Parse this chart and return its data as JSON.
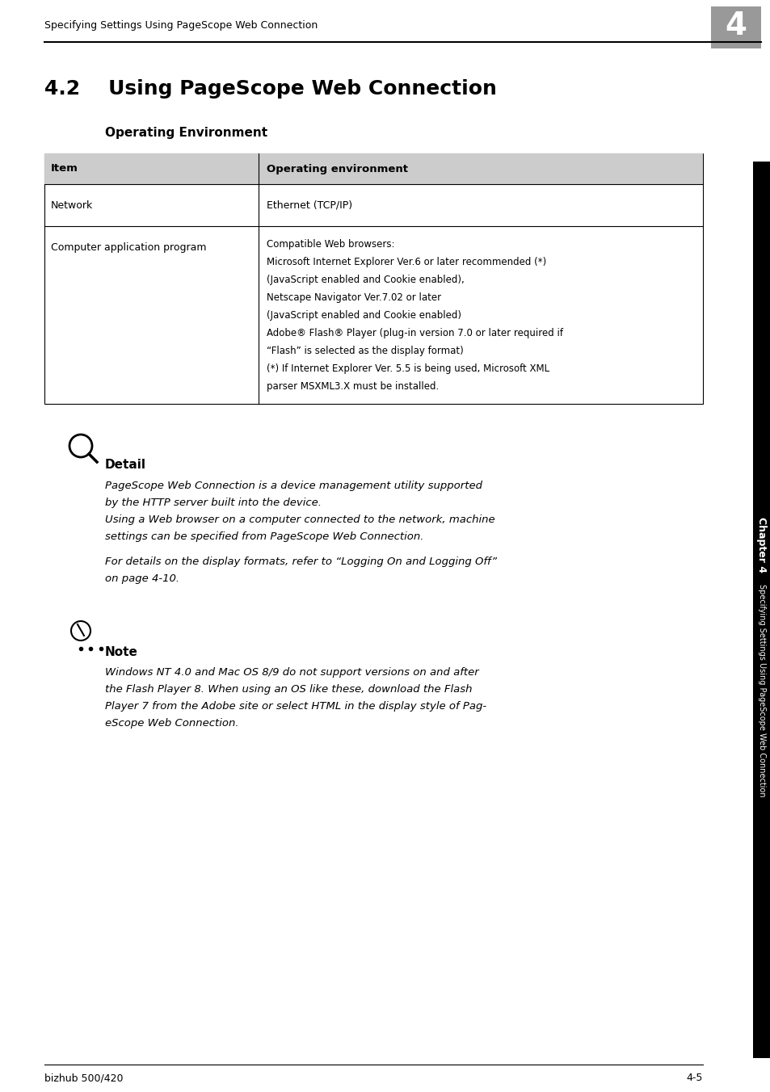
{
  "page_header_text": "Specifying Settings Using PageScope Web Connection",
  "chapter_num": "4",
  "chapter_box_color": "#999999",
  "section_title": "4.2    Using PageScope Web Connection",
  "subsection_title": "Operating Environment",
  "table_header_col1": "Item",
  "table_header_col2": "Operating environment",
  "table_header_bg": "#cccccc",
  "table_row1_col1": "Network",
  "table_row1_col2": "Ethernet (TCP/IP)",
  "table_row2_col1": "Computer application program",
  "table_row2_col2": "Compatible Web browsers:\nMicrosoft Internet Explorer Ver.6 or later recommended (*)\n(JavaScript enabled and Cookie enabled),\nNetscape Navigator Ver.7.02 or later\n(JavaScript enabled and Cookie enabled)\nAdobe® Flash® Player (plug-in version 7.0 or later required if\n“Flash” is selected as the display format)\n(*) If Internet Explorer Ver. 5.5 is being used, Microsoft XML\nparser MSXML3.X must be installed.",
  "detail_title": "Detail",
  "detail_text1": "PageScope Web Connection is a device management utility supported\nby the HTTP server built into the device.\nUsing a Web browser on a computer connected to the network, machine\nsettings can be specified from PageScope Web Connection.",
  "detail_text2": "For details on the display formats, refer to “Logging On and Logging Off”\non page 4-10.",
  "note_title": "Note",
  "note_text": "Windows NT 4.0 and Mac OS 8/9 do not support versions on and after\nthe Flash Player 8. When using an OS like these, download the Flash\nPlayer 7 from the Adobe site or select HTML in the display style of Pag-\neScope Web Connection.",
  "sidebar_text": "Specifying Settings Using PageScope Web Connection",
  "footer_left": "bizhub 500/420",
  "footer_right": "4-5",
  "bg_color": "#ffffff",
  "text_color": "#000000",
  "sidebar_bg": "#000000",
  "sidebar_text_color": "#ffffff"
}
